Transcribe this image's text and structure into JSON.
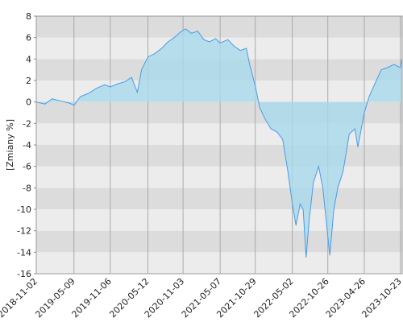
{
  "chart_data": {
    "type": "area",
    "y_label": "[Zmiany %]",
    "x": [
      "2018-11-02",
      "2018-12-15",
      "2019-01-20",
      "2019-03-01",
      "2019-04-15",
      "2019-05-09",
      "2019-06-10",
      "2019-07-20",
      "2019-09-01",
      "2019-10-10",
      "2019-11-06",
      "2019-12-15",
      "2020-01-20",
      "2020-02-20",
      "2020-03-20",
      "2020-04-10",
      "2020-05-12",
      "2020-06-15",
      "2020-07-20",
      "2020-08-20",
      "2020-09-20",
      "2020-10-20",
      "2020-11-15",
      "2020-12-15",
      "2021-01-15",
      "2021-02-15",
      "2021-03-15",
      "2021-04-15",
      "2021-05-07",
      "2021-06-15",
      "2021-07-15",
      "2021-08-15",
      "2021-09-15",
      "2021-10-01",
      "2021-10-29",
      "2021-11-20",
      "2021-12-15",
      "2022-01-15",
      "2022-02-15",
      "2022-03-15",
      "2022-04-10",
      "2022-05-02",
      "2022-05-20",
      "2022-06-10",
      "2022-06-25",
      "2022-07-10",
      "2022-07-25",
      "2022-08-15",
      "2022-09-10",
      "2022-10-01",
      "2022-10-26",
      "2022-11-05",
      "2022-11-25",
      "2022-12-15",
      "2023-01-10",
      "2023-02-10",
      "2023-03-10",
      "2023-03-25",
      "2023-04-26",
      "2023-05-20",
      "2023-06-20",
      "2023-07-20",
      "2023-08-20",
      "2023-09-20",
      "2023-10-23",
      "2023-10-30"
    ],
    "values": [
      0,
      -0.2,
      0.3,
      0.1,
      -0.1,
      -0.3,
      0.5,
      0.8,
      1.3,
      1.6,
      1.4,
      1.7,
      1.9,
      2.3,
      0.9,
      3.0,
      4.2,
      4.5,
      5.0,
      5.6,
      6.0,
      6.5,
      6.8,
      6.4,
      6.6,
      5.8,
      5.6,
      5.9,
      5.5,
      5.8,
      5.2,
      4.8,
      5.0,
      3.5,
      1.5,
      -0.5,
      -1.5,
      -2.5,
      -2.8,
      -3.5,
      -6.5,
      -9.5,
      -11.5,
      -9.5,
      -10.0,
      -14.5,
      -11.0,
      -7.5,
      -6.0,
      -8.0,
      -12.5,
      -14.3,
      -10.0,
      -8.0,
      -6.5,
      -3.0,
      -2.5,
      -4.2,
      -1.0,
      0.5,
      1.8,
      3.0,
      3.2,
      3.5,
      3.2,
      4.0
    ],
    "color": "#4a9be8",
    "fill": "#a9d9ec",
    "xlim": [
      "2018-11-02",
      "2023-11-01"
    ],
    "xticks": [
      "2018-11-02",
      "2019-05-09",
      "2019-11-06",
      "2020-05-12",
      "2020-11-03",
      "2021-05-07",
      "2021-10-29",
      "2022-05-02",
      "2022-10-26",
      "2023-04-26",
      "2023-10-23"
    ],
    "ylim": [
      -16,
      8
    ],
    "yticks": [
      -16,
      -14,
      -12,
      -10,
      -8,
      -6,
      -4,
      -2,
      0,
      2,
      4,
      6,
      8
    ],
    "grid": true
  }
}
